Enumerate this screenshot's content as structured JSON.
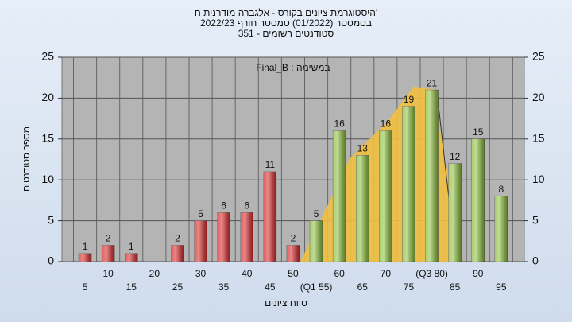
{
  "chart_data": {
    "type": "bar",
    "title": "'היסטוגרמת ציונים בקורס - אלגברה מודרנית ח",
    "subtitle": "בסמסטר (01/2022) סמסטר חורף 2022/23",
    "subtitle2": "סטודנטים רשומים - 351",
    "annotation": "במשימה : Final_B",
    "x_label": "טווח ציונים",
    "y_label": "מספר סטודנטים",
    "categories": [
      "5",
      "10",
      "15",
      "20",
      "25",
      "30",
      "35",
      "40",
      "45",
      "50",
      "(Q1 55)",
      "60",
      "65",
      "70",
      "75",
      "(Q3 80)",
      "85",
      "90",
      "95"
    ],
    "values": [
      1,
      2,
      1,
      null,
      2,
      5,
      6,
      6,
      11,
      2,
      5,
      16,
      13,
      16,
      19,
      21,
      12,
      15,
      8
    ],
    "colors": [
      "#d82828",
      "#d82828",
      "#d82828",
      "#d82828",
      "#d82828",
      "#d82828",
      "#d82828",
      "#d82828",
      "#d82828",
      "#d82828",
      "#8cbf3c",
      "#8cbf3c",
      "#8cbf3c",
      "#8cbf3c",
      "#8cbf3c",
      "#8cbf3c",
      "#8cbf3c",
      "#8cbf3c",
      "#8cbf3c"
    ],
    "ylim": [
      0,
      25
    ],
    "yticks": [
      0,
      5,
      10,
      15,
      20,
      25
    ],
    "y2lim": [
      0,
      25
    ],
    "y2ticks": [
      0,
      5,
      10,
      15,
      20,
      25
    ],
    "grid": true
  }
}
